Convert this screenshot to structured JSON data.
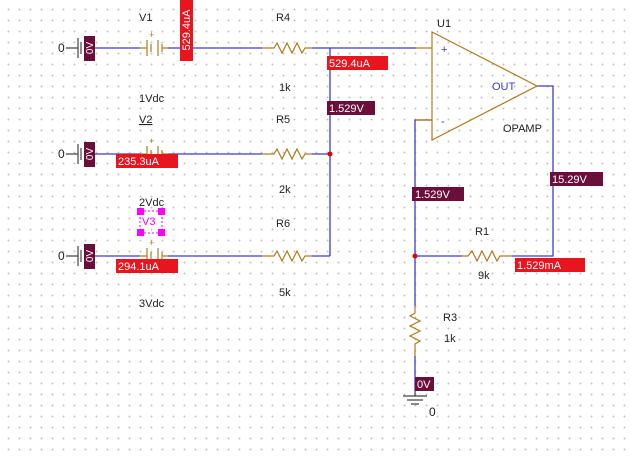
{
  "colors": {
    "wire": "#3c3ccf",
    "component": "#b07a1e",
    "voltage_marker_bg": "#6b0f3a",
    "current_marker_bg": "#e8141e",
    "selection": "#ff00ff",
    "junction": "#e00000"
  },
  "sources": [
    {
      "ref": "V1",
      "value": "1Vdc",
      "left_marker": "0V",
      "ground_glyph": "0",
      "current": "529.4uA"
    },
    {
      "ref": "V2",
      "value": "2Vdc",
      "left_marker": "0V",
      "ground_glyph": "0",
      "current": "235.3uA"
    },
    {
      "ref": "V3",
      "value": "3Vdc",
      "left_marker": "0V",
      "ground_glyph": "0",
      "current": "294.1uA"
    }
  ],
  "resistors": {
    "r4": {
      "ref": "R4",
      "value": "1k"
    },
    "r5": {
      "ref": "R5",
      "value": "2k"
    },
    "r6": {
      "ref": "R6",
      "value": "5k"
    },
    "r1": {
      "ref": "R1",
      "value": "9k"
    },
    "r3": {
      "ref": "R3",
      "value": "1k"
    }
  },
  "opamp": {
    "ref": "U1",
    "model": "OPAMP",
    "plus": "+",
    "minus": "-",
    "out": "OUT"
  },
  "markers": {
    "r4_current": "529.4uA",
    "sum_node_voltage": "1.529V",
    "minus_node_voltage": "1.529V",
    "output_voltage": "15.29V",
    "r1_current": "1.529mA",
    "ground_node_voltage": "0V"
  },
  "ground_label": "0"
}
